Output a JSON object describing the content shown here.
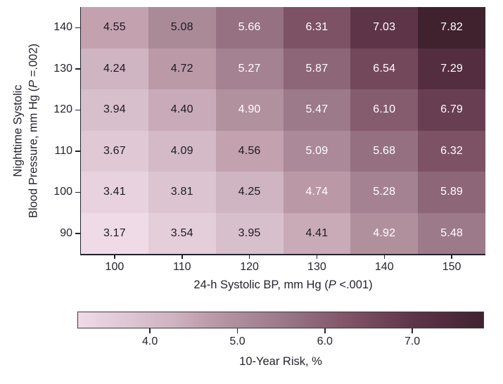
{
  "figure": {
    "background": "#ffffff",
    "text_color": "#23232e"
  },
  "chart_data": {
    "type": "heatmap",
    "x_categories": [
      100,
      110,
      120,
      130,
      140,
      150
    ],
    "y_categories": [
      140,
      130,
      120,
      110,
      100,
      90
    ],
    "values": [
      [
        4.55,
        5.08,
        5.66,
        6.31,
        7.03,
        7.82
      ],
      [
        4.24,
        4.72,
        5.27,
        5.87,
        6.54,
        7.29
      ],
      [
        3.94,
        4.4,
        4.9,
        5.47,
        6.1,
        6.79
      ],
      [
        3.67,
        4.09,
        4.56,
        5.09,
        5.68,
        6.32
      ],
      [
        3.41,
        3.81,
        4.25,
        4.74,
        5.28,
        5.89
      ],
      [
        3.17,
        3.54,
        3.95,
        4.41,
        4.92,
        5.48
      ]
    ],
    "white_text": [
      [
        0,
        0,
        1,
        1,
        1,
        1
      ],
      [
        0,
        0,
        1,
        1,
        1,
        1
      ],
      [
        0,
        0,
        1,
        1,
        1,
        1
      ],
      [
        0,
        0,
        0,
        1,
        1,
        1
      ],
      [
        0,
        0,
        0,
        1,
        1,
        1
      ],
      [
        0,
        0,
        0,
        0,
        1,
        1
      ]
    ],
    "value_decimals": 2,
    "cell_text_dark": "#1c1a24",
    "cell_text_white": "#ffffff",
    "xlabel": {
      "prefix": "24-h Systolic BP, mm Hg (",
      "italic": "P",
      "suffix": " <.001)"
    },
    "ylabel": {
      "line1": "Nighttime Systolic",
      "line2_prefix": "Blood Pressure, mm Hg (",
      "line2_italic": "P",
      "line2_suffix": " =.002)"
    },
    "colorbar": {
      "label": "10-Year Risk, %",
      "tick_labels": [
        "4.0",
        "5.0",
        "6.0",
        "7.0"
      ],
      "tick_values": [
        4.0,
        5.0,
        6.0,
        7.0
      ],
      "range": [
        3.17,
        7.82
      ]
    },
    "colormap": [
      {
        "value": 3.17,
        "color": "#efdbe7"
      },
      {
        "value": 4.25,
        "color": "#cfb4c1"
      },
      {
        "value": 4.55,
        "color": "#c3a1af"
      },
      {
        "value": 4.9,
        "color": "#b2919f"
      },
      {
        "value": 5.48,
        "color": "#9c7a8a"
      },
      {
        "value": 6.31,
        "color": "#7d5264"
      },
      {
        "value": 7.03,
        "color": "#5e3449"
      },
      {
        "value": 7.82,
        "color": "#40222f"
      }
    ]
  }
}
